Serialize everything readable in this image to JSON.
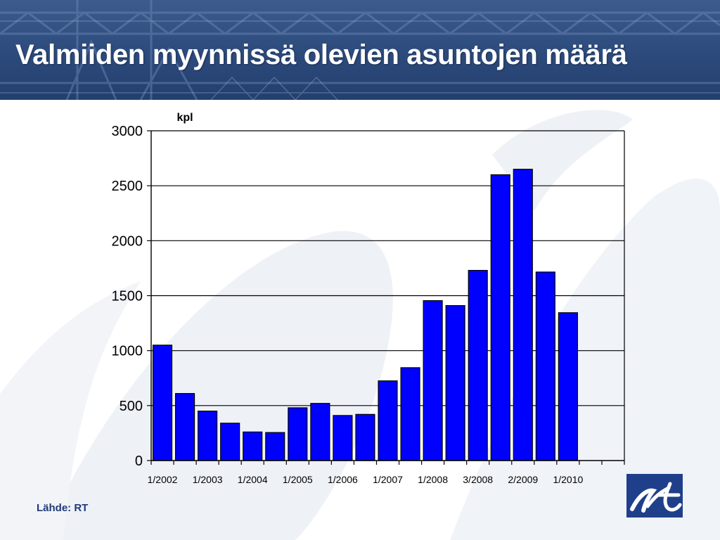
{
  "slide": {
    "title": "Valmiiden myynnissä olevien asuntojen määrä",
    "source": "Lähde: RT"
  },
  "colors": {
    "header_blue": "#2c4a7c",
    "bar_fill": "#0000ff",
    "bar_stroke": "#000000",
    "source_text": "#1f3a78",
    "logo_bg": "#1f3f8a"
  },
  "icons": {
    "logo": "rt-logo-icon"
  },
  "chart_data": {
    "type": "bar",
    "title": "",
    "ylabel": "kpl",
    "xlabel": "",
    "ylim": [
      0,
      3000
    ],
    "yticks": [
      0,
      500,
      1000,
      1500,
      2000,
      2500,
      3000
    ],
    "grid": true,
    "legend": "none",
    "n_slots": 21,
    "categories": [
      "1/2002",
      "",
      "1/2003",
      "",
      "1/2004",
      "",
      "1/2005",
      "",
      "1/2006",
      "",
      "1/2007",
      "",
      "1/2008",
      "",
      "3/2008",
      "",
      "2/2009",
      "",
      "1/2010"
    ],
    "values": [
      1050,
      610,
      450,
      340,
      260,
      255,
      480,
      520,
      410,
      420,
      725,
      845,
      1455,
      1410,
      1730,
      2600,
      2650,
      1715,
      1345
    ],
    "tick_labels": [
      {
        "slot": 0,
        "label": "1/2002"
      },
      {
        "slot": 2,
        "label": "1/2003"
      },
      {
        "slot": 4,
        "label": "1/2004"
      },
      {
        "slot": 6,
        "label": "1/2005"
      },
      {
        "slot": 8,
        "label": "1/2006"
      },
      {
        "slot": 10,
        "label": "1/2007"
      },
      {
        "slot": 12,
        "label": "1/2008"
      },
      {
        "slot": 14,
        "label": "3/2008"
      },
      {
        "slot": 16,
        "label": "2/2009"
      },
      {
        "slot": 18,
        "label": "1/2010"
      }
    ]
  }
}
